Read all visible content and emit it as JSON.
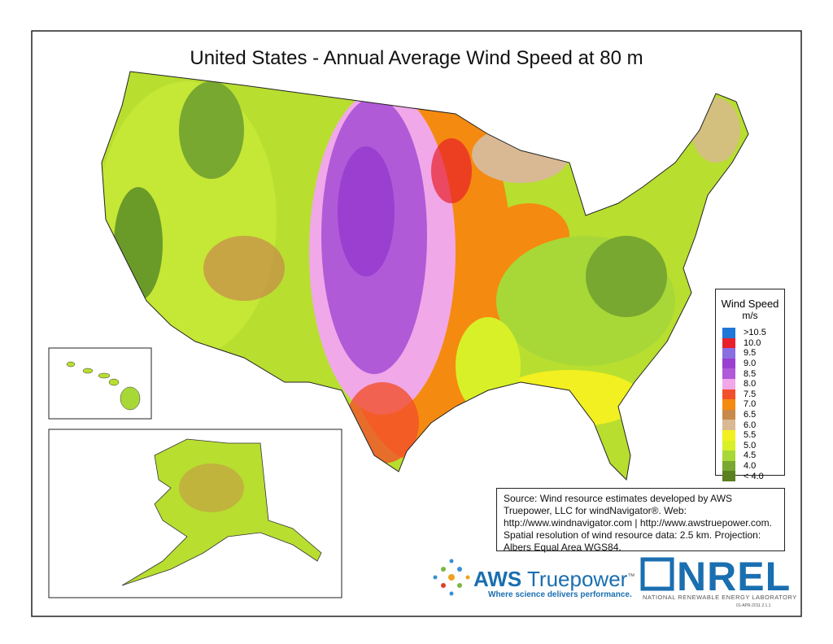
{
  "title": "United States - Annual Average Wind Speed at 80 m",
  "legend": {
    "title": "Wind Speed",
    "unit": "m/s",
    "items": [
      {
        "label": ">10.5",
        "color": "#1f78d8"
      },
      {
        "label": "10.0",
        "color": "#e8202a"
      },
      {
        "label": "9.5",
        "color": "#8a6fe0"
      },
      {
        "label": "9.0",
        "color": "#9b3fd0"
      },
      {
        "label": "8.5",
        "color": "#b05ad8"
      },
      {
        "label": "8.0",
        "color": "#f0a8e8"
      },
      {
        "label": "7.5",
        "color": "#f2502a"
      },
      {
        "label": "7.0",
        "color": "#f58a10"
      },
      {
        "label": "6.5",
        "color": "#c8894a"
      },
      {
        "label": "6.0",
        "color": "#d9b894"
      },
      {
        "label": "5.5",
        "color": "#f2f020"
      },
      {
        "label": "5.0",
        "color": "#d8f028"
      },
      {
        "label": "4.5",
        "color": "#a8d838"
      },
      {
        "label": "4.0",
        "color": "#78a830"
      },
      {
        "label": "< 4.0",
        "color": "#5a8020"
      }
    ]
  },
  "source": "Source: Wind resource estimates developed by AWS Truepower, LLC for windNavigator®. Web: http://www.windnavigator.com | http://www.awstruepower.com. Spatial resolution of wind resource data: 2.5 km. Projection: Albers Equal Area WGS84.",
  "aws_logo": {
    "name_a": "AWS",
    "name_b": "Truepower",
    "tm": "™",
    "tagline": "Where science delivers performance."
  },
  "nrel_logo": {
    "name": "NREL",
    "full_name": "NATIONAL RENEWABLE ENERGY LABORATORY"
  },
  "version": "01-APR-2011 2.1.1"
}
